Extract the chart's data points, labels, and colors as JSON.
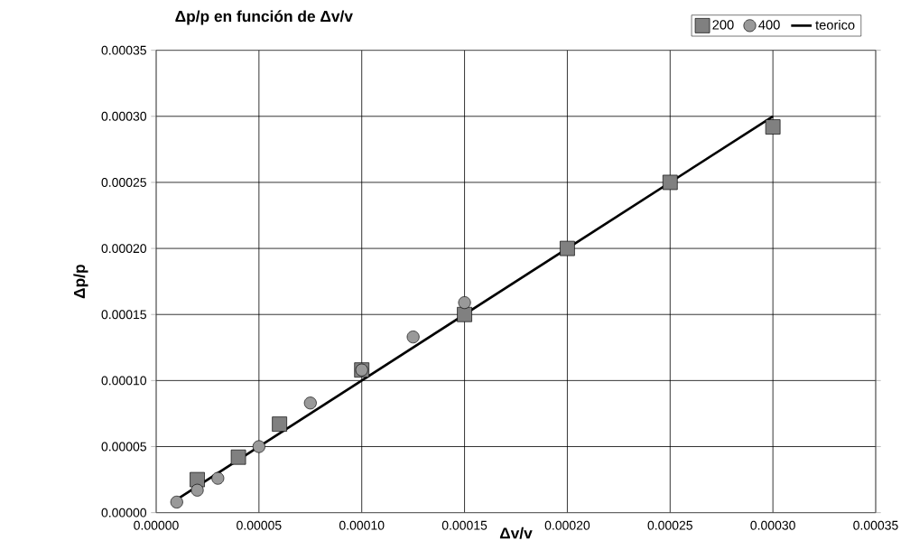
{
  "chart_data": {
    "type": "scatter",
    "title": "Δp/p en función de Δv/v",
    "xlabel": "Δv/v",
    "ylabel": "Δp/p",
    "series": [
      {
        "name": "200",
        "type": "scatter",
        "marker": "square",
        "color": "#808080",
        "x": [
          2e-05,
          4e-05,
          6e-05,
          0.0001,
          0.00015,
          0.0002,
          0.00025,
          0.0003
        ],
        "values": [
          2.5e-05,
          4.2e-05,
          6.7e-05,
          0.000108,
          0.00015,
          0.0002,
          0.00025,
          0.000292
        ]
      },
      {
        "name": "400",
        "type": "scatter",
        "marker": "circle",
        "color": "#999999",
        "x": [
          1e-05,
          2e-05,
          3e-05,
          5e-05,
          7.5e-05,
          0.0001,
          0.000125,
          0.00015
        ],
        "values": [
          8e-06,
          1.7e-05,
          2.6e-05,
          5e-05,
          8.3e-05,
          0.000108,
          0.000133,
          0.000159
        ]
      },
      {
        "name": "teorico",
        "type": "line",
        "marker": "none",
        "color": "#000000",
        "x": [
          1e-05,
          0.0003
        ],
        "values": [
          1e-05,
          0.0003
        ]
      }
    ],
    "xlim": [
      0,
      0.00035
    ],
    "ylim": [
      0,
      0.00035
    ],
    "xticks": [
      {
        "value": 0,
        "label": "0.00000"
      },
      {
        "value": 5e-05,
        "label": "0.00005"
      },
      {
        "value": 0.0001,
        "label": "0.00010"
      },
      {
        "value": 0.00015,
        "label": "0.00015"
      },
      {
        "value": 0.0002,
        "label": "0.00020"
      },
      {
        "value": 0.00025,
        "label": "0.00025"
      },
      {
        "value": 0.0003,
        "label": "0.00030"
      },
      {
        "value": 0.00035,
        "label": "0.00035"
      }
    ],
    "yticks": [
      {
        "value": 0,
        "label": "0.00000"
      },
      {
        "value": 5e-05,
        "label": "0.00005"
      },
      {
        "value": 0.0001,
        "label": "0.00010"
      },
      {
        "value": 0.00015,
        "label": "0.00015"
      },
      {
        "value": 0.0002,
        "label": "0.00020"
      },
      {
        "value": 0.00025,
        "label": "0.00025"
      },
      {
        "value": 0.0003,
        "label": "0.00030"
      },
      {
        "value": 0.00035,
        "label": "0.00035"
      }
    ],
    "grid": true,
    "legend": "top right"
  }
}
